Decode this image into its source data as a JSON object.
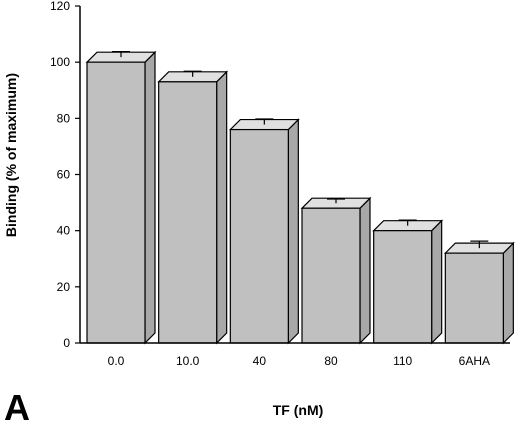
{
  "chart_data": {
    "type": "bar",
    "panel_label": "A",
    "xlabel": "TF (nM)",
    "ylabel": "Binding (% of maximum)",
    "categories": [
      "0.0",
      "10.0",
      "40",
      "80",
      "110",
      "6AHA"
    ],
    "values": [
      100,
      93,
      76,
      48,
      40,
      32
    ],
    "errors": [
      2,
      2,
      2,
      1.5,
      2,
      2.5
    ],
    "ylim": [
      0,
      120
    ],
    "yticks": [
      0,
      20,
      40,
      60,
      80,
      100,
      120
    ],
    "grid": false,
    "legend": "none",
    "bar_color": "#c0c0c0",
    "bar_top_color": "#e0e0e0",
    "bar_side_color": "#a8a8a8",
    "bar_style": "3d"
  }
}
